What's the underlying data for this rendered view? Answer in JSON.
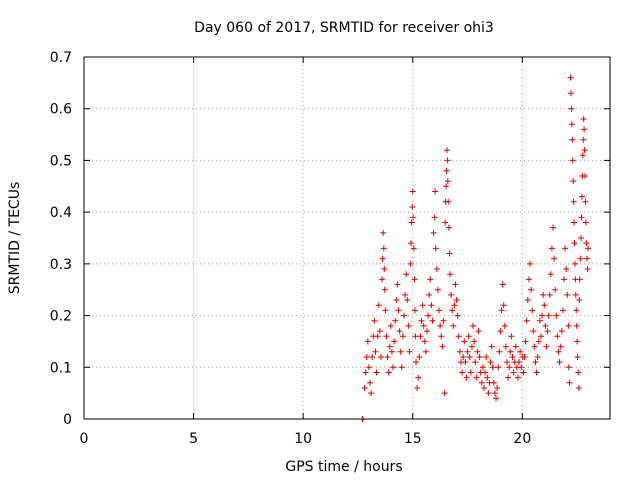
{
  "chart_data": {
    "type": "scatter",
    "title": "Day 060 of 2017, SRMTID for receiver ohi3",
    "xlabel": "GPS time / hours",
    "ylabel": "SRMTID / TECUs",
    "xlim": [
      0,
      24
    ],
    "ylim": [
      0,
      0.7
    ],
    "xticks": [
      "0",
      "5",
      "10",
      "15",
      "20"
    ],
    "xtick_values": [
      0,
      5,
      10,
      15,
      20
    ],
    "yticks": [
      "0",
      "0.1",
      "0.2",
      "0.3",
      "0.4",
      "0.5",
      "0.6",
      "0.7"
    ],
    "ytick_values": [
      0,
      0.1,
      0.2,
      0.3,
      0.4,
      0.5,
      0.6,
      0.7
    ],
    "grid": true,
    "marker": "+",
    "marker_color": "#dd0000",
    "series": [
      {
        "name": "SRMTID",
        "points": [
          [
            12.7,
            0.0
          ],
          [
            12.72,
            0.0
          ],
          [
            12.8,
            0.06
          ],
          [
            12.85,
            0.09
          ],
          [
            12.9,
            0.12
          ],
          [
            12.95,
            0.15
          ],
          [
            13.0,
            0.1
          ],
          [
            13.05,
            0.07
          ],
          [
            13.1,
            0.05
          ],
          [
            13.15,
            0.12
          ],
          [
            13.2,
            0.16
          ],
          [
            13.25,
            0.19
          ],
          [
            13.3,
            0.13
          ],
          [
            13.35,
            0.09
          ],
          [
            13.4,
            0.16
          ],
          [
            13.45,
            0.22
          ],
          [
            13.5,
            0.17
          ],
          [
            13.55,
            0.12
          ],
          [
            13.6,
            0.27
          ],
          [
            13.62,
            0.31
          ],
          [
            13.65,
            0.36
          ],
          [
            13.68,
            0.33
          ],
          [
            13.7,
            0.29
          ],
          [
            13.72,
            0.25
          ],
          [
            13.75,
            0.21
          ],
          [
            13.8,
            0.16
          ],
          [
            13.85,
            0.12
          ],
          [
            13.9,
            0.09
          ],
          [
            13.95,
            0.14
          ],
          [
            14.0,
            0.18
          ],
          [
            14.05,
            0.13
          ],
          [
            14.1,
            0.1
          ],
          [
            14.15,
            0.15
          ],
          [
            14.2,
            0.19
          ],
          [
            14.25,
            0.23
          ],
          [
            14.3,
            0.26
          ],
          [
            14.35,
            0.21
          ],
          [
            14.4,
            0.17
          ],
          [
            14.45,
            0.13
          ],
          [
            14.5,
            0.1
          ],
          [
            14.55,
            0.16
          ],
          [
            14.6,
            0.2
          ],
          [
            14.65,
            0.24
          ],
          [
            14.7,
            0.28
          ],
          [
            14.75,
            0.23
          ],
          [
            14.8,
            0.18
          ],
          [
            14.85,
            0.13
          ],
          [
            14.9,
            0.3
          ],
          [
            14.92,
            0.34
          ],
          [
            14.95,
            0.38
          ],
          [
            14.98,
            0.41
          ],
          [
            15.0,
            0.44
          ],
          [
            15.02,
            0.39
          ],
          [
            15.05,
            0.33
          ],
          [
            15.08,
            0.27
          ],
          [
            15.1,
            0.21
          ],
          [
            15.12,
            0.16
          ],
          [
            15.15,
            0.11
          ],
          [
            15.2,
            0.06
          ],
          [
            15.25,
            0.08
          ],
          [
            15.3,
            0.12
          ],
          [
            15.35,
            0.16
          ],
          [
            15.4,
            0.19
          ],
          [
            15.45,
            0.22
          ],
          [
            15.5,
            0.18
          ],
          [
            15.55,
            0.15
          ],
          [
            15.6,
            0.13
          ],
          [
            15.65,
            0.17
          ],
          [
            15.7,
            0.2
          ],
          [
            15.75,
            0.24
          ],
          [
            15.8,
            0.27
          ],
          [
            15.85,
            0.22
          ],
          [
            15.9,
            0.19
          ],
          [
            15.95,
            0.36
          ],
          [
            16.0,
            0.39
          ],
          [
            16.02,
            0.44
          ],
          [
            16.05,
            0.33
          ],
          [
            16.1,
            0.29
          ],
          [
            16.15,
            0.25
          ],
          [
            16.2,
            0.21
          ],
          [
            16.25,
            0.18
          ],
          [
            16.3,
            0.16
          ],
          [
            16.35,
            0.14
          ],
          [
            16.4,
            0.19
          ],
          [
            16.45,
            0.05
          ],
          [
            16.48,
            0.38
          ],
          [
            16.5,
            0.42
          ],
          [
            16.52,
            0.45
          ],
          [
            16.54,
            0.48
          ],
          [
            16.56,
            0.52
          ],
          [
            16.58,
            0.5
          ],
          [
            16.6,
            0.46
          ],
          [
            16.62,
            0.42
          ],
          [
            16.65,
            0.37
          ],
          [
            16.68,
            0.32
          ],
          [
            16.7,
            0.28
          ],
          [
            16.75,
            0.24
          ],
          [
            16.8,
            0.21
          ],
          [
            16.85,
            0.18
          ],
          [
            16.9,
            0.22
          ],
          [
            16.95,
            0.26
          ],
          [
            17.0,
            0.23
          ],
          [
            17.05,
            0.2
          ],
          [
            17.1,
            0.16
          ],
          [
            17.15,
            0.13
          ],
          [
            17.2,
            0.11
          ],
          [
            17.25,
            0.09
          ],
          [
            17.3,
            0.12
          ],
          [
            17.35,
            0.15
          ],
          [
            17.4,
            0.11
          ],
          [
            17.45,
            0.08
          ],
          [
            17.5,
            0.13
          ],
          [
            17.55,
            0.16
          ],
          [
            17.6,
            0.12
          ],
          [
            17.65,
            0.09
          ],
          [
            17.7,
            0.14
          ],
          [
            17.75,
            0.18
          ],
          [
            17.8,
            0.15
          ],
          [
            17.85,
            0.11
          ],
          [
            17.9,
            0.08
          ],
          [
            17.95,
            0.13
          ],
          [
            18.0,
            0.17
          ],
          [
            18.05,
            0.12
          ],
          [
            18.1,
            0.09
          ],
          [
            18.15,
            0.07
          ],
          [
            18.2,
            0.1
          ],
          [
            18.25,
            0.06
          ],
          [
            18.3,
            0.09
          ],
          [
            18.35,
            0.12
          ],
          [
            18.4,
            0.08
          ],
          [
            18.45,
            0.05
          ],
          [
            18.5,
            0.07
          ],
          [
            18.55,
            0.11
          ],
          [
            18.6,
            0.14
          ],
          [
            18.65,
            0.1
          ],
          [
            18.7,
            0.07
          ],
          [
            18.75,
            0.05
          ],
          [
            18.8,
            0.04
          ],
          [
            18.85,
            0.06
          ],
          [
            18.9,
            0.1
          ],
          [
            18.95,
            0.13
          ],
          [
            19.0,
            0.17
          ],
          [
            19.05,
            0.21
          ],
          [
            19.1,
            0.26
          ],
          [
            19.15,
            0.22
          ],
          [
            19.2,
            0.18
          ],
          [
            19.25,
            0.14
          ],
          [
            19.3,
            0.11
          ],
          [
            19.35,
            0.08
          ],
          [
            19.4,
            0.1
          ],
          [
            19.45,
            0.13
          ],
          [
            19.5,
            0.16
          ],
          [
            19.55,
            0.12
          ],
          [
            19.6,
            0.09
          ],
          [
            19.65,
            0.11
          ],
          [
            19.7,
            0.14
          ],
          [
            19.75,
            0.1
          ],
          [
            19.8,
            0.08
          ],
          [
            19.85,
            0.11
          ],
          [
            19.9,
            0.13
          ],
          [
            19.95,
            0.1
          ],
          [
            20.0,
            0.12
          ],
          [
            20.05,
            0.09
          ],
          [
            20.1,
            0.12
          ],
          [
            20.15,
            0.15
          ],
          [
            20.2,
            0.19
          ],
          [
            20.25,
            0.23
          ],
          [
            20.3,
            0.27
          ],
          [
            20.35,
            0.3
          ],
          [
            20.4,
            0.25
          ],
          [
            20.45,
            0.21
          ],
          [
            20.5,
            0.17
          ],
          [
            20.55,
            0.14
          ],
          [
            20.6,
            0.11
          ],
          [
            20.65,
            0.09
          ],
          [
            20.7,
            0.12
          ],
          [
            20.75,
            0.15
          ],
          [
            20.8,
            0.19
          ],
          [
            20.85,
            0.16
          ],
          [
            20.9,
            0.2
          ],
          [
            20.95,
            0.24
          ],
          [
            21.0,
            0.22
          ],
          [
            21.05,
            0.18
          ],
          [
            21.1,
            0.14
          ],
          [
            21.15,
            0.17
          ],
          [
            21.2,
            0.2
          ],
          [
            21.25,
            0.24
          ],
          [
            21.3,
            0.28
          ],
          [
            21.35,
            0.33
          ],
          [
            21.4,
            0.37
          ],
          [
            21.45,
            0.31
          ],
          [
            21.5,
            0.25
          ],
          [
            21.55,
            0.2
          ],
          [
            21.6,
            0.16
          ],
          [
            21.65,
            0.13
          ],
          [
            21.7,
            0.11
          ],
          [
            21.75,
            0.14
          ],
          [
            21.8,
            0.17
          ],
          [
            21.85,
            0.21
          ],
          [
            21.9,
            0.27
          ],
          [
            21.95,
            0.33
          ],
          [
            22.0,
            0.29
          ],
          [
            22.05,
            0.24
          ],
          [
            22.1,
            0.18
          ],
          [
            22.12,
            0.1
          ],
          [
            22.15,
            0.07
          ],
          [
            22.2,
            0.66
          ],
          [
            22.22,
            0.63
          ],
          [
            22.24,
            0.6
          ],
          [
            22.26,
            0.57
          ],
          [
            22.28,
            0.54
          ],
          [
            22.3,
            0.5
          ],
          [
            22.32,
            0.46
          ],
          [
            22.34,
            0.42
          ],
          [
            22.36,
            0.38
          ],
          [
            22.38,
            0.34
          ],
          [
            22.4,
            0.3
          ],
          [
            22.42,
            0.27
          ],
          [
            22.44,
            0.24
          ],
          [
            22.46,
            0.21
          ],
          [
            22.48,
            0.18
          ],
          [
            22.5,
            0.15
          ],
          [
            22.52,
            0.12
          ],
          [
            22.55,
            0.09
          ],
          [
            22.58,
            0.06
          ],
          [
            22.6,
            0.23
          ],
          [
            22.62,
            0.27
          ],
          [
            22.65,
            0.31
          ],
          [
            22.68,
            0.35
          ],
          [
            22.7,
            0.39
          ],
          [
            22.72,
            0.43
          ],
          [
            22.74,
            0.47
          ],
          [
            22.76,
            0.51
          ],
          [
            22.78,
            0.54
          ],
          [
            22.8,
            0.58
          ],
          [
            22.82,
            0.56
          ],
          [
            22.84,
            0.52
          ],
          [
            22.86,
            0.47
          ],
          [
            22.88,
            0.42
          ],
          [
            22.9,
            0.38
          ],
          [
            22.92,
            0.34
          ],
          [
            22.95,
            0.31
          ],
          [
            22.98,
            0.29
          ],
          [
            23.0,
            0.33
          ]
        ]
      }
    ]
  }
}
